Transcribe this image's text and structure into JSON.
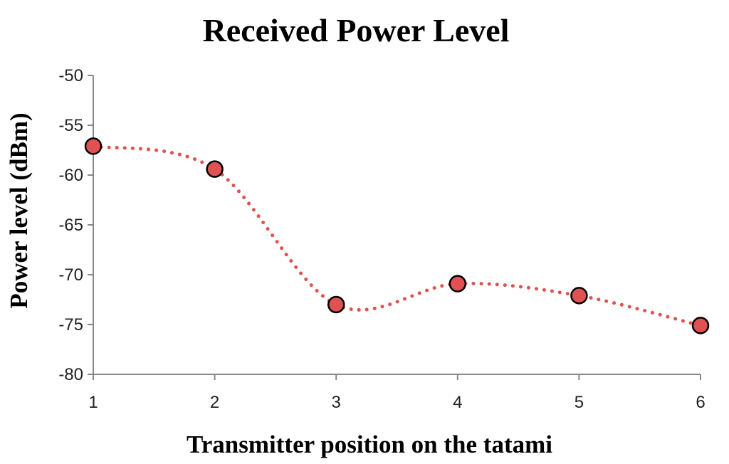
{
  "chart_data": {
    "type": "line",
    "title": "Received Power Level",
    "xlabel": "Transmitter position on the tatami",
    "ylabel": "Power level  (dBm)",
    "x": [
      1,
      2,
      3,
      4,
      5,
      6
    ],
    "xticks": [
      "1",
      "2",
      "3",
      "4",
      "5",
      "6"
    ],
    "yticks": [
      "-50",
      "-55",
      "-60",
      "-65",
      "-70",
      "-75",
      "-80"
    ],
    "xlim": [
      1,
      6
    ],
    "ylim": [
      -80,
      -50
    ],
    "series": [
      {
        "values": [
          -57.1,
          -59.4,
          -73.0,
          -70.9,
          -72.1,
          -75.1
        ],
        "color": "#e05252",
        "line_style": "dotted smooth",
        "marker": "circle"
      }
    ],
    "grid": false,
    "legend": "none"
  }
}
